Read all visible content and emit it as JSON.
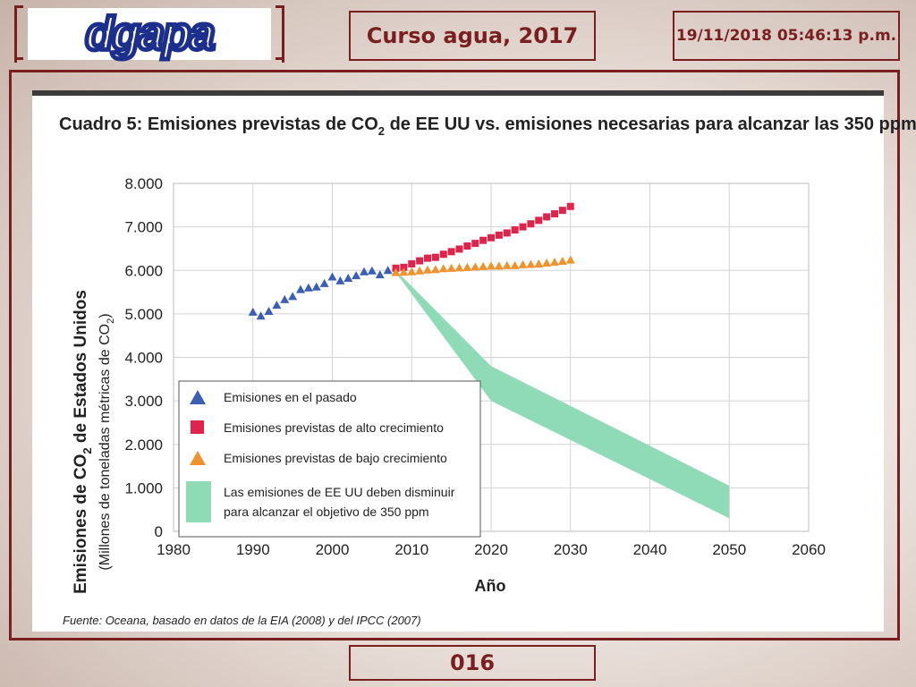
{
  "header": {
    "logo_text": "dgapa",
    "course_title": "Curso agua, 2017",
    "datetime": "19/11/2018 05:46:13 p.m."
  },
  "footer": {
    "page_number": "016"
  },
  "colors": {
    "frame": "#7a1f1f",
    "past": "#3a5fb4",
    "high": "#e0234a",
    "low": "#f0922e",
    "band": "#8fdbb8",
    "logo_blue": "#1d2f8c"
  },
  "chart_data": {
    "type": "scatter",
    "title": "Cuadro 5: Emisiones previstas de CO",
    "title_sub": "2",
    "title_rest": " de EE UU vs. emisiones necesarias para alcanzar las 350 ppm",
    "ylabel_main": "Emisiones de CO",
    "ylabel_main_sub": "2",
    "ylabel_main_rest": " de Estados Unidos",
    "ylabel_sub": "(Millones de toneladas métricas de CO",
    "ylabel_sub_sub": "2",
    "ylabel_sub_rest": ")",
    "xlabel": "Año",
    "xlim": [
      1980,
      2060
    ],
    "ylim": [
      0,
      8000
    ],
    "xticks": [
      1980,
      1990,
      2000,
      2010,
      2020,
      2030,
      2040,
      2050,
      2060
    ],
    "yticks": [
      0,
      1000,
      2000,
      3000,
      4000,
      5000,
      6000,
      7000,
      8000
    ],
    "ytick_labels": [
      "0",
      "1.000",
      "2.000",
      "3.000",
      "4.000",
      "5.000",
      "6.000",
      "7.000",
      "8.000"
    ],
    "grid": true,
    "series": [
      {
        "name": "Emisiones en el pasado",
        "marker": "triangle",
        "x": [
          1990,
          1991,
          1992,
          1993,
          1994,
          1995,
          1996,
          1997,
          1998,
          1999,
          2000,
          2001,
          2002,
          2003,
          2004,
          2005,
          2006,
          2007
        ],
        "y": [
          5040,
          4950,
          5060,
          5200,
          5330,
          5400,
          5560,
          5600,
          5620,
          5700,
          5850,
          5760,
          5820,
          5880,
          5970,
          5990,
          5900,
          6000
        ]
      },
      {
        "name": "Emisiones previstas de alto crecimiento",
        "marker": "square",
        "x": [
          2008,
          2009,
          2010,
          2011,
          2012,
          2013,
          2014,
          2015,
          2016,
          2017,
          2018,
          2019,
          2020,
          2021,
          2022,
          2023,
          2024,
          2025,
          2026,
          2027,
          2028,
          2029,
          2030
        ],
        "y": [
          6050,
          6070,
          6150,
          6220,
          6280,
          6300,
          6370,
          6430,
          6490,
          6560,
          6620,
          6690,
          6750,
          6810,
          6860,
          6930,
          7000,
          7070,
          7150,
          7230,
          7300,
          7380,
          7470
        ]
      },
      {
        "name": "Emisiones previstas de bajo crecimiento",
        "marker": "triangle",
        "x": [
          2008,
          2009,
          2010,
          2011,
          2012,
          2013,
          2014,
          2015,
          2016,
          2017,
          2018,
          2019,
          2020,
          2021,
          2022,
          2023,
          2024,
          2025,
          2026,
          2027,
          2028,
          2029,
          2030
        ],
        "y": [
          5950,
          5960,
          5970,
          5990,
          6010,
          6020,
          6040,
          6050,
          6060,
          6070,
          6080,
          6090,
          6100,
          6100,
          6110,
          6110,
          6130,
          6140,
          6150,
          6170,
          6190,
          6210,
          6240
        ]
      },
      {
        "name": "Las emisiones de EE UU deben disminuir para alcanzar el objetivo de 350 ppm",
        "type": "band",
        "x": [
          2008,
          2020,
          2050
        ],
        "upper": [
          6000,
          3800,
          1050
        ],
        "lower": [
          5950,
          3000,
          300
        ]
      }
    ],
    "legend_placement": "bottom-left",
    "source": "Fuente: Oceana, basado en datos de la EIA (2008) y del IPCC (2007)"
  }
}
